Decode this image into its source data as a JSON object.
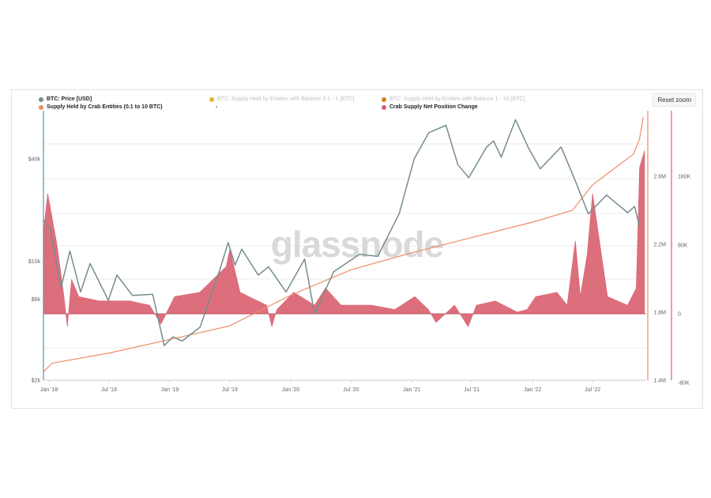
{
  "reset_zoom_label": "Reset zoom",
  "watermark": "glassnode",
  "legend": [
    {
      "label": "BTC: Price [USD]",
      "color": "#748d8c",
      "active": true
    },
    {
      "label": "BTC: Supply Held by Entities with Balance 0.1 - 1 [BTC]",
      "color": "#e0b32b",
      "active": false
    },
    {
      "label": "BTC: Supply Held by Entities with Balance 1 - 10 [BTC]",
      "color": "#d4801d",
      "active": false
    },
    {
      "label": "Supply Held by Crab Entities (0.1 to 10 BTC)",
      "color": "#ee8c64",
      "active": true
    },
    {
      "label": "-",
      "color": "",
      "active": true
    },
    {
      "label": "Crab Supply Net Position Change",
      "color": "#d95f6e",
      "active": true
    }
  ],
  "colors": {
    "price": "#748d8c",
    "crab_supply": "#ee8c64",
    "net_change": "#d95f6e",
    "gridline": "#ebebeb"
  },
  "chart_data": {
    "type": "line",
    "x_tick_labels": [
      "Jan '18",
      "Jul '18",
      "Jan '19",
      "Jul '19",
      "Jan '20",
      "Jul '20",
      "Jan '21",
      "Jul '21",
      "Jan '22",
      "Jul '22"
    ],
    "x_range": [
      "2017-12-15",
      "2022-12-10"
    ],
    "y_axes": {
      "price": {
        "ticks": [
          "$2k",
          "$6k",
          "$10k",
          "$40k"
        ],
        "tick_values": [
          2000,
          6000,
          10000,
          40000
        ],
        "scale": "log",
        "range": [
          2000,
          60000
        ]
      },
      "crab_supply": {
        "ticks": [
          "1.4M",
          "1.8M",
          "2.2M",
          "2.6M"
        ],
        "tick_values": [
          1400000,
          1800000,
          2200000,
          2600000
        ],
        "range": [
          1400000,
          2950000
        ]
      },
      "net_change": {
        "ticks": [
          "-80K",
          "0",
          "80K",
          "160K"
        ],
        "tick_values": [
          -80000,
          0,
          80000,
          160000
        ],
        "range": [
          -80000,
          230000
        ]
      }
    },
    "series": [
      {
        "name": "BTC: Price [USD]",
        "type": "line",
        "points": [
          [
            "2017-12-15",
            17500
          ],
          [
            "2018-01-05",
            15500
          ],
          [
            "2018-02-06",
            7000
          ],
          [
            "2018-03-05",
            11500
          ],
          [
            "2018-04-06",
            6600
          ],
          [
            "2018-05-05",
            9700
          ],
          [
            "2018-06-29",
            5900
          ],
          [
            "2018-07-25",
            8300
          ],
          [
            "2018-09-10",
            6300
          ],
          [
            "2018-11-10",
            6400
          ],
          [
            "2018-12-15",
            3200
          ],
          [
            "2019-01-10",
            3600
          ],
          [
            "2019-02-07",
            3400
          ],
          [
            "2019-04-02",
            4100
          ],
          [
            "2019-05-30",
            8700
          ],
          [
            "2019-06-26",
            12900
          ],
          [
            "2019-07-17",
            9500
          ],
          [
            "2019-08-06",
            11800
          ],
          [
            "2019-09-25",
            8300
          ],
          [
            "2019-10-26",
            9300
          ],
          [
            "2019-12-18",
            6600
          ],
          [
            "2020-02-12",
            10300
          ],
          [
            "2020-03-13",
            4900
          ],
          [
            "2020-05-10",
            8700
          ],
          [
            "2020-07-27",
            11000
          ],
          [
            "2020-09-20",
            10700
          ],
          [
            "2020-11-24",
            19100
          ],
          [
            "2021-01-08",
            40000
          ],
          [
            "2021-02-21",
            57000
          ],
          [
            "2021-04-14",
            63000
          ],
          [
            "2021-05-20",
            37000
          ],
          [
            "2021-06-22",
            31000
          ],
          [
            "2021-08-15",
            47000
          ],
          [
            "2021-09-05",
            51000
          ],
          [
            "2021-09-28",
            41000
          ],
          [
            "2021-11-10",
            68000
          ],
          [
            "2021-12-20",
            46000
          ],
          [
            "2022-01-24",
            35000
          ],
          [
            "2022-03-28",
            47000
          ],
          [
            "2022-05-12",
            29000
          ],
          [
            "2022-06-18",
            19000
          ],
          [
            "2022-08-12",
            24500
          ],
          [
            "2022-10-15",
            19300
          ],
          [
            "2022-11-05",
            21000
          ],
          [
            "2022-11-20",
            16000
          ]
        ]
      },
      {
        "name": "Supply Held by Crab Entities (0.1 to 10 BTC)",
        "type": "line",
        "points": [
          [
            "2017-12-15",
            1450000
          ],
          [
            "2018-01-10",
            1500000
          ],
          [
            "2018-07-01",
            1560000
          ],
          [
            "2019-01-01",
            1640000
          ],
          [
            "2019-07-01",
            1720000
          ],
          [
            "2020-01-01",
            1900000
          ],
          [
            "2020-07-01",
            2050000
          ],
          [
            "2021-01-01",
            2150000
          ],
          [
            "2021-07-01",
            2240000
          ],
          [
            "2022-01-01",
            2330000
          ],
          [
            "2022-05-01",
            2400000
          ],
          [
            "2022-07-01",
            2550000
          ],
          [
            "2022-11-01",
            2730000
          ],
          [
            "2022-11-20",
            2820000
          ],
          [
            "2022-12-01",
            2950000
          ]
        ]
      },
      {
        "name": "Crab Supply Net Position Change",
        "type": "area",
        "points": [
          [
            "2017-12-15",
            95000
          ],
          [
            "2017-12-28",
            140000
          ],
          [
            "2018-01-25",
            80000
          ],
          [
            "2018-02-15",
            20000
          ],
          [
            "2018-02-25",
            -15000
          ],
          [
            "2018-03-10",
            40000
          ],
          [
            "2018-04-01",
            20000
          ],
          [
            "2018-06-01",
            15000
          ],
          [
            "2018-09-01",
            15000
          ],
          [
            "2018-11-01",
            10000
          ],
          [
            "2018-12-05",
            -12000
          ],
          [
            "2019-01-15",
            20000
          ],
          [
            "2019-04-01",
            25000
          ],
          [
            "2019-06-20",
            55000
          ],
          [
            "2019-07-01",
            75000
          ],
          [
            "2019-08-01",
            25000
          ],
          [
            "2019-10-20",
            10000
          ],
          [
            "2019-11-05",
            -15000
          ],
          [
            "2019-11-20",
            5000
          ],
          [
            "2020-01-10",
            25000
          ],
          [
            "2020-03-13",
            10000
          ],
          [
            "2020-04-15",
            30000
          ],
          [
            "2020-06-01",
            10000
          ],
          [
            "2020-09-01",
            10000
          ],
          [
            "2020-11-10",
            5000
          ],
          [
            "2021-01-10",
            20000
          ],
          [
            "2021-02-20",
            5000
          ],
          [
            "2021-03-15",
            -10000
          ],
          [
            "2021-05-10",
            10000
          ],
          [
            "2021-06-20",
            -15000
          ],
          [
            "2021-07-15",
            10000
          ],
          [
            "2021-09-10",
            15000
          ],
          [
            "2021-11-15",
            2000
          ],
          [
            "2021-12-15",
            5000
          ],
          [
            "2022-01-10",
            20000
          ],
          [
            "2022-03-15",
            25000
          ],
          [
            "2022-04-15",
            10000
          ],
          [
            "2022-05-10",
            85000
          ],
          [
            "2022-05-25",
            20000
          ],
          [
            "2022-06-15",
            70000
          ],
          [
            "2022-07-01",
            140000
          ],
          [
            "2022-08-15",
            20000
          ],
          [
            "2022-10-15",
            10000
          ],
          [
            "2022-11-10",
            30000
          ],
          [
            "2022-11-20",
            170000
          ],
          [
            "2022-12-05",
            190000
          ]
        ]
      }
    ]
  }
}
